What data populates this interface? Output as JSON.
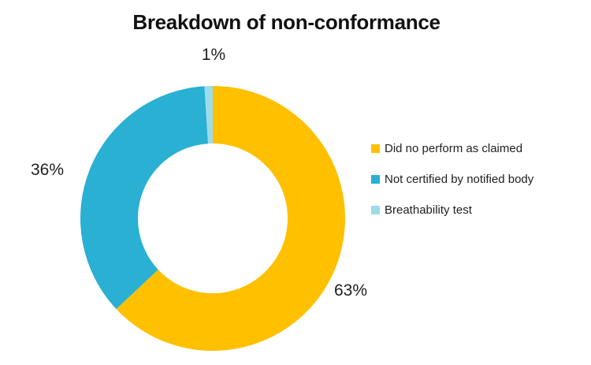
{
  "chart_data": {
    "type": "pie",
    "subtype": "donut",
    "title": "Breakdown of non-conformance",
    "categories": [
      "Did no perform as claimed",
      "Not certified by notified body",
      "Breathability test"
    ],
    "values": [
      63,
      36,
      1
    ],
    "data_labels": [
      "63%",
      "36%",
      "1%"
    ],
    "colors": [
      "#FFC000",
      "#29B0D3",
      "#9EDBEA"
    ],
    "start_angle_deg": 0,
    "direction": "clockwise",
    "legend_position": "right",
    "background": "#FFFFFF",
    "text_color": "#1F1F1F"
  }
}
